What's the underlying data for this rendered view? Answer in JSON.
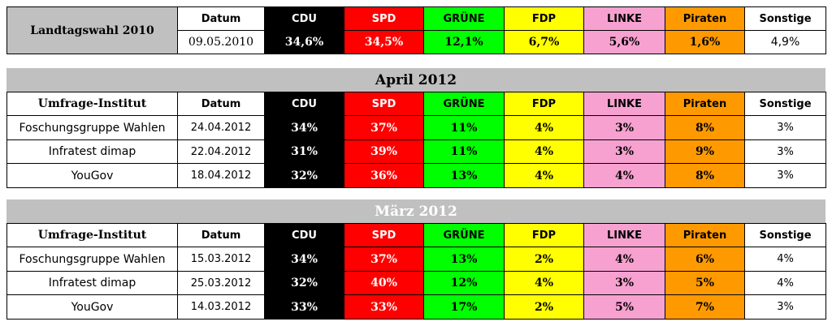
{
  "election": {
    "label": "Landtagswahl 2010",
    "headers": [
      "Datum",
      "CDU",
      "SPD",
      "GRÜNE",
      "FDP",
      "LINKE",
      "Piraten",
      "Sonstige"
    ],
    "values": [
      "09.05.2010",
      "34,6%",
      "34,5%",
      "12,1%",
      "6,7%",
      "5,6%",
      "1,6%",
      "4,9%"
    ]
  },
  "polls": [
    {
      "title": "April 2012",
      "headers": [
        "Umfrage-Institut",
        "Datum",
        "CDU",
        "SPD",
        "GRÜNE",
        "FDP",
        "LINKE",
        "Piraten",
        "Sonstige"
      ],
      "rows": [
        [
          "Foschungsgruppe Wahlen",
          "24.04.2012",
          "34%",
          "37%",
          "11%",
          "4%",
          "3%",
          "8%",
          "3%"
        ],
        [
          "Infratest dimap",
          "22.04.2012",
          "31%",
          "39%",
          "11%",
          "4%",
          "3%",
          "9%",
          "3%"
        ],
        [
          "YouGov",
          "18.04.2012",
          "32%",
          "36%",
          "13%",
          "4%",
          "4%",
          "8%",
          "3%"
        ]
      ]
    },
    {
      "title": "März 2012",
      "headers": [
        "Umfrage-Institut",
        "Datum",
        "CDU",
        "SPD",
        "GRÜNE",
        "FDP",
        "LINKE",
        "Piraten",
        "Sonstige"
      ],
      "rows": [
        [
          "Foschungsgruppe Wahlen",
          "15.03.2012",
          "34%",
          "37%",
          "13%",
          "2%",
          "4%",
          "6%",
          "4%"
        ],
        [
          "Infratest dimap",
          "25.03.2012",
          "32%",
          "40%",
          "12%",
          "4%",
          "3%",
          "5%",
          "4%"
        ],
        [
          "YouGov",
          "14.03.2012",
          "33%",
          "33%",
          "17%",
          "2%",
          "5%",
          "7%",
          "3%"
        ]
      ]
    }
  ]
}
